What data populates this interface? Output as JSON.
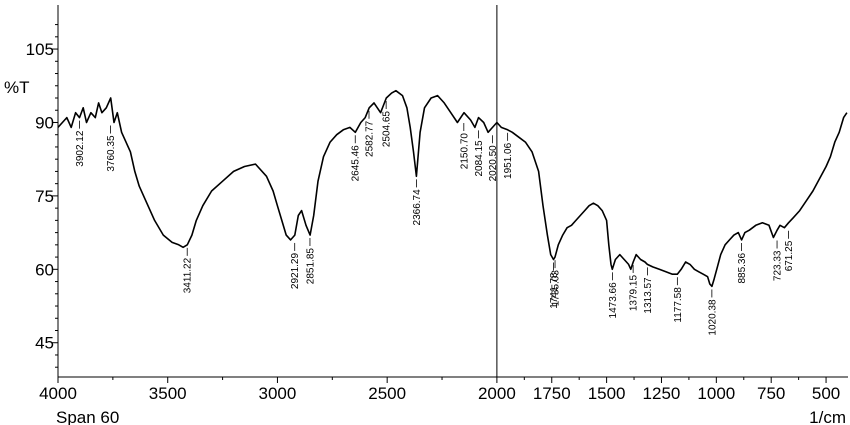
{
  "chart_data": {
    "type": "line",
    "title": "",
    "ylabel": "%T",
    "xlabel": "1/cm",
    "footer": "Span 60",
    "xlim": [
      4000,
      400
    ],
    "ylim": [
      38,
      114
    ],
    "x_ticks": [
      4000,
      3500,
      3000,
      2500,
      2000,
      1750,
      1500,
      1250,
      1000,
      750,
      500
    ],
    "x_tick_labels": [
      "4000",
      "3500",
      "3000",
      "2500",
      "2000",
      "1750",
      "1500",
      "1250",
      "1000",
      "750",
      "500"
    ],
    "y_ticks": [
      45,
      60,
      75,
      90,
      105
    ],
    "y_tick_labels": [
      "45",
      "60",
      "75",
      "90",
      "105"
    ],
    "vertical_marker": 2000,
    "grid": false,
    "series": [
      {
        "x": [
          4000,
          3980,
          3960,
          3940,
          3920,
          3902,
          3885,
          3870,
          3850,
          3830,
          3815,
          3800,
          3780,
          3760,
          3745,
          3730,
          3710,
          3690,
          3670,
          3650,
          3630,
          3600,
          3560,
          3520,
          3480,
          3450,
          3430,
          3411,
          3390,
          3370,
          3340,
          3300,
          3250,
          3200,
          3150,
          3100,
          3050,
          3020,
          3000,
          2980,
          2960,
          2940,
          2921,
          2905,
          2890,
          2870,
          2851,
          2835,
          2815,
          2790,
          2760,
          2730,
          2700,
          2670,
          2645,
          2620,
          2600,
          2582,
          2560,
          2530,
          2504,
          2480,
          2460,
          2430,
          2410,
          2395,
          2380,
          2367,
          2350,
          2330,
          2300,
          2270,
          2240,
          2210,
          2180,
          2150,
          2120,
          2100,
          2084,
          2060,
          2040,
          2020,
          2000,
          1980,
          1951,
          1930,
          1900,
          1870,
          1840,
          1810,
          1790,
          1770,
          1755,
          1742,
          1735,
          1720,
          1700,
          1680,
          1660,
          1640,
          1620,
          1600,
          1580,
          1560,
          1540,
          1520,
          1500,
          1490,
          1480,
          1474,
          1460,
          1440,
          1420,
          1400,
          1390,
          1379,
          1365,
          1345,
          1325,
          1314,
          1290,
          1260,
          1230,
          1200,
          1178,
          1160,
          1140,
          1120,
          1100,
          1080,
          1060,
          1040,
          1030,
          1020,
          1010,
          995,
          980,
          960,
          940,
          920,
          900,
          885,
          870,
          850,
          820,
          790,
          760,
          740,
          723,
          710,
          690,
          671,
          650,
          620,
          590,
          560,
          530,
          500,
          480,
          460,
          440,
          420,
          405
        ],
        "y": [
          89,
          90,
          91,
          89,
          92,
          91,
          93,
          90,
          92,
          91,
          94,
          92,
          93,
          95,
          90,
          92,
          88,
          86,
          84,
          80,
          77,
          74,
          70,
          67,
          65.5,
          65,
          64.5,
          65,
          67,
          70,
          73,
          76,
          78,
          80,
          81,
          81.5,
          79,
          76,
          73,
          70,
          67,
          66,
          67,
          71,
          72,
          69,
          67,
          71,
          78,
          83,
          86,
          87.5,
          88.5,
          89,
          88,
          90,
          91,
          93,
          94,
          92,
          95,
          96,
          96.5,
          95.5,
          93,
          89,
          84,
          79,
          88,
          93,
          95,
          95.5,
          94,
          92,
          90,
          92,
          90.5,
          89,
          91,
          90,
          88,
          89,
          90,
          89,
          88.5,
          88,
          87,
          86,
          84,
          80,
          73,
          67,
          63,
          62,
          62.5,
          65,
          67,
          68.5,
          69,
          70,
          71,
          72,
          73,
          73.5,
          73,
          72,
          70,
          65,
          61,
          60,
          62,
          63,
          62,
          61,
          60,
          61.5,
          63,
          62,
          61.5,
          61,
          60.5,
          60,
          59.5,
          59,
          59,
          60,
          61.5,
          61,
          60,
          59.5,
          59,
          58.5,
          57,
          56.5,
          58,
          60.5,
          63,
          65,
          66,
          67,
          67.5,
          66,
          67.5,
          68,
          69,
          69.5,
          69,
          66.5,
          68,
          69,
          68.5,
          69.5,
          70.5,
          72,
          74,
          76,
          78.5,
          81,
          83,
          86,
          88,
          91,
          92
        ]
      }
    ],
    "peak_labels": [
      {
        "x": 3902.12,
        "y": 91,
        "label": "3902.12"
      },
      {
        "x": 3760.35,
        "y": 90,
        "label": "3760.35"
      },
      {
        "x": 3411.22,
        "y": 65,
        "label": "3411.22"
      },
      {
        "x": 2921.29,
        "y": 66,
        "label": "2921.29"
      },
      {
        "x": 2851.85,
        "y": 67,
        "label": "2851.85"
      },
      {
        "x": 2645.46,
        "y": 88,
        "label": "2645.46"
      },
      {
        "x": 2582.77,
        "y": 93,
        "label": "2582.77"
      },
      {
        "x": 2504.65,
        "y": 95,
        "label": "2504.65"
      },
      {
        "x": 2366.74,
        "y": 79,
        "label": "2366.74"
      },
      {
        "x": 2150.7,
        "y": 90.5,
        "label": "2150.70"
      },
      {
        "x": 2084.15,
        "y": 89,
        "label": "2084.15"
      },
      {
        "x": 2020.5,
        "y": 88,
        "label": "2020.50"
      },
      {
        "x": 1951.06,
        "y": 88.5,
        "label": "1951.06"
      },
      {
        "x": 1741.78,
        "y": 62,
        "label": "1741.78"
      },
      {
        "x": 1735.03,
        "y": 62.5,
        "label": "1735.03"
      },
      {
        "x": 1473.66,
        "y": 60,
        "label": "1473.66"
      },
      {
        "x": 1379.15,
        "y": 61.5,
        "label": "1379.15"
      },
      {
        "x": 1313.57,
        "y": 61,
        "label": "1313.57"
      },
      {
        "x": 1177.58,
        "y": 59,
        "label": "1177.58"
      },
      {
        "x": 1020.38,
        "y": 56.5,
        "label": "1020.38"
      },
      {
        "x": 885.36,
        "y": 66,
        "label": "885.36"
      },
      {
        "x": 723.33,
        "y": 66.5,
        "label": "723.33"
      },
      {
        "x": 671.25,
        "y": 68.5,
        "label": "671.25"
      }
    ],
    "colors": {
      "line": "#000000",
      "axis": "#000000",
      "background": "#ffffff"
    }
  }
}
